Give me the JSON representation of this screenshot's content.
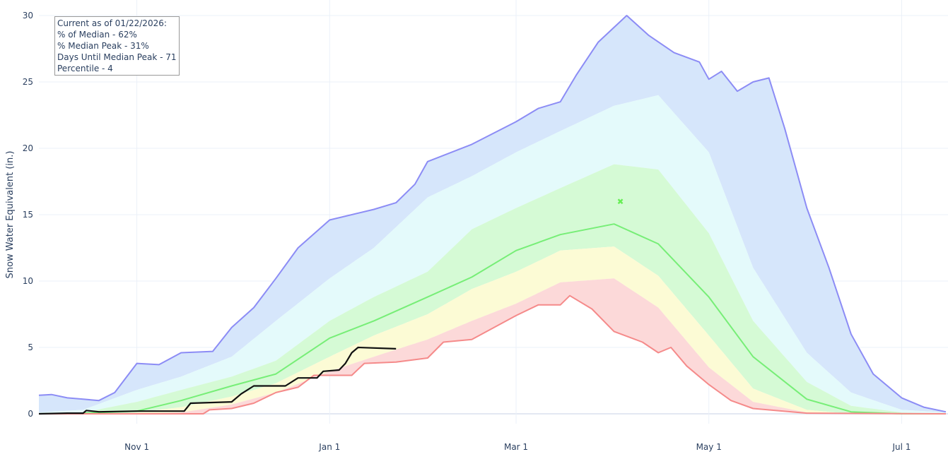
{
  "chart_data": {
    "type": "area",
    "title": "",
    "xlabel": "",
    "ylabel": "Snow Water Equivalent (in.)",
    "ylim": [
      0,
      30
    ],
    "xlim": [
      "2025-10-01",
      "2026-07-15"
    ],
    "yticks": [
      "0",
      "5",
      "10",
      "15",
      "20",
      "25",
      "30"
    ],
    "xticks": [
      {
        "date": "2025-11-01",
        "label": "Nov 1"
      },
      {
        "date": "2026-01-01",
        "label": "Jan 1"
      },
      {
        "date": "2026-03-01",
        "label": "Mar 1"
      },
      {
        "date": "2026-05-01",
        "label": "May 1"
      },
      {
        "date": "2026-07-01",
        "label": "Jul 1"
      }
    ],
    "grid": true,
    "colors": {
      "max_line": "#8c8cf5",
      "max_band": "#d6e6fb",
      "p90_band": "#e4fafb",
      "p70_band": "#d5fad5",
      "median_line": "#77ee77",
      "p30_band": "#fcfbd5",
      "p10_band": "#fcd9d9",
      "min_line": "#f58a8a",
      "current_line": "#111111",
      "peak_marker": "#66ee55"
    },
    "series": {
      "max": [
        [
          "2025-10-01",
          1.4
        ],
        [
          "2025-10-05",
          1.45
        ],
        [
          "2025-10-10",
          1.2
        ],
        [
          "2025-10-15",
          1.1
        ],
        [
          "2025-10-20",
          1.0
        ],
        [
          "2025-10-25",
          1.6
        ],
        [
          "2025-11-01",
          3.8
        ],
        [
          "2025-11-08",
          3.7
        ],
        [
          "2025-11-15",
          4.6
        ],
        [
          "2025-11-25",
          4.7
        ],
        [
          "2025-12-01",
          6.5
        ],
        [
          "2025-12-08",
          8.0
        ],
        [
          "2025-12-15",
          10.2
        ],
        [
          "2025-12-22",
          12.5
        ],
        [
          "2026-01-01",
          14.6
        ],
        [
          "2026-01-15",
          15.4
        ],
        [
          "2026-01-22",
          15.9
        ],
        [
          "2026-01-28",
          17.3
        ],
        [
          "2026-02-01",
          19.0
        ],
        [
          "2026-02-15",
          20.3
        ],
        [
          "2026-03-01",
          22.0
        ],
        [
          "2026-03-08",
          23.0
        ],
        [
          "2026-03-15",
          23.5
        ],
        [
          "2026-03-20",
          25.5
        ],
        [
          "2026-03-27",
          28.0
        ],
        [
          "2026-04-05",
          30.0
        ],
        [
          "2026-04-12",
          28.5
        ],
        [
          "2026-04-20",
          27.2
        ],
        [
          "2026-04-28",
          26.5
        ],
        [
          "2026-05-01",
          25.2
        ],
        [
          "2026-05-05",
          25.8
        ],
        [
          "2026-05-10",
          24.3
        ],
        [
          "2026-05-15",
          25.0
        ],
        [
          "2026-05-20",
          25.3
        ],
        [
          "2026-05-25",
          21.5
        ],
        [
          "2026-06-01",
          15.5
        ],
        [
          "2026-06-08",
          11.0
        ],
        [
          "2026-06-15",
          6.0
        ],
        [
          "2026-06-22",
          3.0
        ],
        [
          "2026-07-01",
          1.2
        ],
        [
          "2026-07-08",
          0.5
        ],
        [
          "2026-07-15",
          0.15
        ]
      ],
      "p90": [
        [
          "2025-10-01",
          0.1
        ],
        [
          "2025-10-15",
          0.3
        ],
        [
          "2025-11-01",
          1.8
        ],
        [
          "2025-11-15",
          2.8
        ],
        [
          "2025-12-01",
          4.3
        ],
        [
          "2025-12-15",
          7.0
        ],
        [
          "2026-01-01",
          10.2
        ],
        [
          "2026-01-15",
          12.5
        ],
        [
          "2026-02-01",
          16.3
        ],
        [
          "2026-02-15",
          17.9
        ],
        [
          "2026-03-01",
          19.7
        ],
        [
          "2026-03-15",
          21.3
        ],
        [
          "2026-04-01",
          23.2
        ],
        [
          "2026-04-15",
          24.0
        ],
        [
          "2026-05-01",
          19.7
        ],
        [
          "2026-05-15",
          11.0
        ],
        [
          "2026-06-01",
          4.6
        ],
        [
          "2026-06-15",
          1.6
        ],
        [
          "2026-07-01",
          0.3
        ],
        [
          "2026-07-15",
          0.1
        ]
      ],
      "p70": [
        [
          "2025-10-01",
          0
        ],
        [
          "2025-10-15",
          0.1
        ],
        [
          "2025-11-01",
          0.9
        ],
        [
          "2025-11-15",
          1.8
        ],
        [
          "2025-12-01",
          2.8
        ],
        [
          "2025-12-15",
          4.0
        ],
        [
          "2026-01-01",
          7.0
        ],
        [
          "2026-01-15",
          8.8
        ],
        [
          "2026-02-01",
          10.7
        ],
        [
          "2026-02-15",
          13.9
        ],
        [
          "2026-03-01",
          15.5
        ],
        [
          "2026-03-15",
          17.0
        ],
        [
          "2026-04-01",
          18.8
        ],
        [
          "2026-04-15",
          18.4
        ],
        [
          "2026-05-01",
          13.6
        ],
        [
          "2026-05-15",
          7.0
        ],
        [
          "2026-06-01",
          2.4
        ],
        [
          "2026-06-15",
          0.6
        ],
        [
          "2026-07-01",
          0.1
        ],
        [
          "2026-07-15",
          0
        ]
      ],
      "median": [
        [
          "2025-10-01",
          0
        ],
        [
          "2025-10-15",
          0.05
        ],
        [
          "2025-11-01",
          0.2
        ],
        [
          "2025-11-15",
          1.0
        ],
        [
          "2025-12-01",
          2.1
        ],
        [
          "2025-12-15",
          3.0
        ],
        [
          "2026-01-01",
          5.7
        ],
        [
          "2026-01-15",
          7.0
        ],
        [
          "2026-02-01",
          8.8
        ],
        [
          "2026-02-15",
          10.3
        ],
        [
          "2026-03-01",
          12.3
        ],
        [
          "2026-03-15",
          13.5
        ],
        [
          "2026-04-01",
          14.3
        ],
        [
          "2026-04-15",
          12.8
        ],
        [
          "2026-05-01",
          8.8
        ],
        [
          "2026-05-15",
          4.3
        ],
        [
          "2026-06-01",
          1.1
        ],
        [
          "2026-06-15",
          0.15
        ],
        [
          "2026-07-01",
          0
        ],
        [
          "2026-07-15",
          0
        ]
      ],
      "p30": [
        [
          "2025-10-01",
          0
        ],
        [
          "2025-10-15",
          0
        ],
        [
          "2025-11-01",
          0.1
        ],
        [
          "2025-11-15",
          0.5
        ],
        [
          "2025-12-01",
          1.3
        ],
        [
          "2025-12-15",
          2.3
        ],
        [
          "2026-01-01",
          4.3
        ],
        [
          "2026-01-15",
          5.9
        ],
        [
          "2026-02-01",
          7.5
        ],
        [
          "2026-02-15",
          9.4
        ],
        [
          "2026-03-01",
          10.7
        ],
        [
          "2026-03-15",
          12.3
        ],
        [
          "2026-04-01",
          12.6
        ],
        [
          "2026-04-15",
          10.4
        ],
        [
          "2026-05-01",
          5.9
        ],
        [
          "2026-05-15",
          1.9
        ],
        [
          "2026-06-01",
          0.3
        ],
        [
          "2026-06-15",
          0
        ],
        [
          "2026-07-15",
          0
        ]
      ],
      "p10": [
        [
          "2025-10-01",
          0
        ],
        [
          "2025-11-01",
          0
        ],
        [
          "2025-11-15",
          0.1
        ],
        [
          "2025-12-01",
          0.7
        ],
        [
          "2025-12-15",
          1.6
        ],
        [
          "2026-01-01",
          3.2
        ],
        [
          "2026-01-15",
          4.3
        ],
        [
          "2026-02-01",
          5.6
        ],
        [
          "2026-02-15",
          7.0
        ],
        [
          "2026-03-01",
          8.3
        ],
        [
          "2026-03-15",
          9.9
        ],
        [
          "2026-04-01",
          10.2
        ],
        [
          "2026-04-15",
          8.0
        ],
        [
          "2026-05-01",
          3.5
        ],
        [
          "2026-05-15",
          0.9
        ],
        [
          "2026-06-01",
          0.1
        ],
        [
          "2026-06-15",
          0
        ],
        [
          "2026-07-15",
          0
        ]
      ],
      "min": [
        [
          "2025-10-01",
          0
        ],
        [
          "2025-11-22",
          0
        ],
        [
          "2025-11-24",
          0.3
        ],
        [
          "2025-12-01",
          0.4
        ],
        [
          "2025-12-08",
          0.8
        ],
        [
          "2025-12-15",
          1.6
        ],
        [
          "2025-12-22",
          2.0
        ],
        [
          "2025-12-27",
          2.9
        ],
        [
          "2026-01-08",
          2.9
        ],
        [
          "2026-01-12",
          3.8
        ],
        [
          "2026-01-22",
          3.9
        ],
        [
          "2026-02-01",
          4.2
        ],
        [
          "2026-02-06",
          5.4
        ],
        [
          "2026-02-15",
          5.6
        ],
        [
          "2026-03-01",
          7.4
        ],
        [
          "2026-03-08",
          8.2
        ],
        [
          "2026-03-15",
          8.2
        ],
        [
          "2026-03-18",
          8.9
        ],
        [
          "2026-03-25",
          7.9
        ],
        [
          "2026-04-01",
          6.2
        ],
        [
          "2026-04-10",
          5.4
        ],
        [
          "2026-04-15",
          4.6
        ],
        [
          "2026-04-19",
          5.0
        ],
        [
          "2026-04-24",
          3.6
        ],
        [
          "2026-05-01",
          2.2
        ],
        [
          "2026-05-08",
          1.0
        ],
        [
          "2026-05-15",
          0.4
        ],
        [
          "2026-06-01",
          0.05
        ],
        [
          "2026-07-15",
          0
        ]
      ],
      "current": [
        [
          "2025-10-01",
          0
        ],
        [
          "2025-10-10",
          0.05
        ],
        [
          "2025-10-15",
          0.05
        ],
        [
          "2025-10-16",
          0.25
        ],
        [
          "2025-10-20",
          0.15
        ],
        [
          "2025-11-01",
          0.2
        ],
        [
          "2025-11-16",
          0.2
        ],
        [
          "2025-11-18",
          0.8
        ],
        [
          "2025-12-01",
          0.9
        ],
        [
          "2025-12-04",
          1.5
        ],
        [
          "2025-12-08",
          2.1
        ],
        [
          "2025-12-18",
          2.1
        ],
        [
          "2025-12-22",
          2.7
        ],
        [
          "2025-12-28",
          2.7
        ],
        [
          "2025-12-30",
          3.2
        ],
        [
          "2026-01-04",
          3.3
        ],
        [
          "2026-01-06",
          3.8
        ],
        [
          "2026-01-08",
          4.6
        ],
        [
          "2026-01-10",
          5.0
        ],
        [
          "2026-01-22",
          4.9
        ]
      ]
    },
    "median_peak": {
      "date": "2026-04-03",
      "value": 16.0
    }
  },
  "info_box": {
    "line1": "Current as of 01/22/2026:",
    "line2": "% of Median - 62%",
    "line3": "% Median Peak - 31%",
    "line4": "Days Until Median Peak - 71",
    "line5": "Percentile - 4"
  }
}
